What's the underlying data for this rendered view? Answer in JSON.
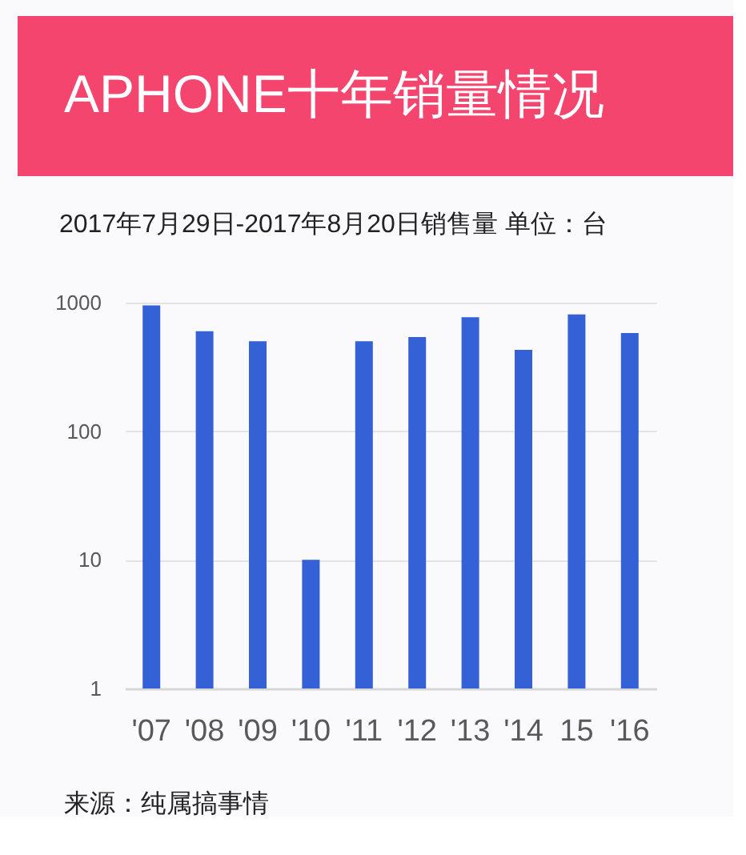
{
  "chart_data": {
    "type": "bar",
    "title": "APHONE十年销量情况",
    "subtitle": "2017年7月29日-2017年8月20日销售量 单位：台",
    "annotations": [
      "来源：纯属搞事情"
    ],
    "categories": [
      "'07",
      "'08",
      "'09",
      "'10",
      "'11",
      "'12",
      "'13",
      "'14",
      "15",
      "'16"
    ],
    "values": [
      950,
      600,
      500,
      10,
      500,
      540,
      770,
      430,
      810,
      580
    ],
    "color": "#3561d6",
    "log": true,
    "ylim": [
      1,
      1000
    ],
    "yticks": [
      1,
      10,
      100,
      1000
    ],
    "grid": "y"
  }
}
